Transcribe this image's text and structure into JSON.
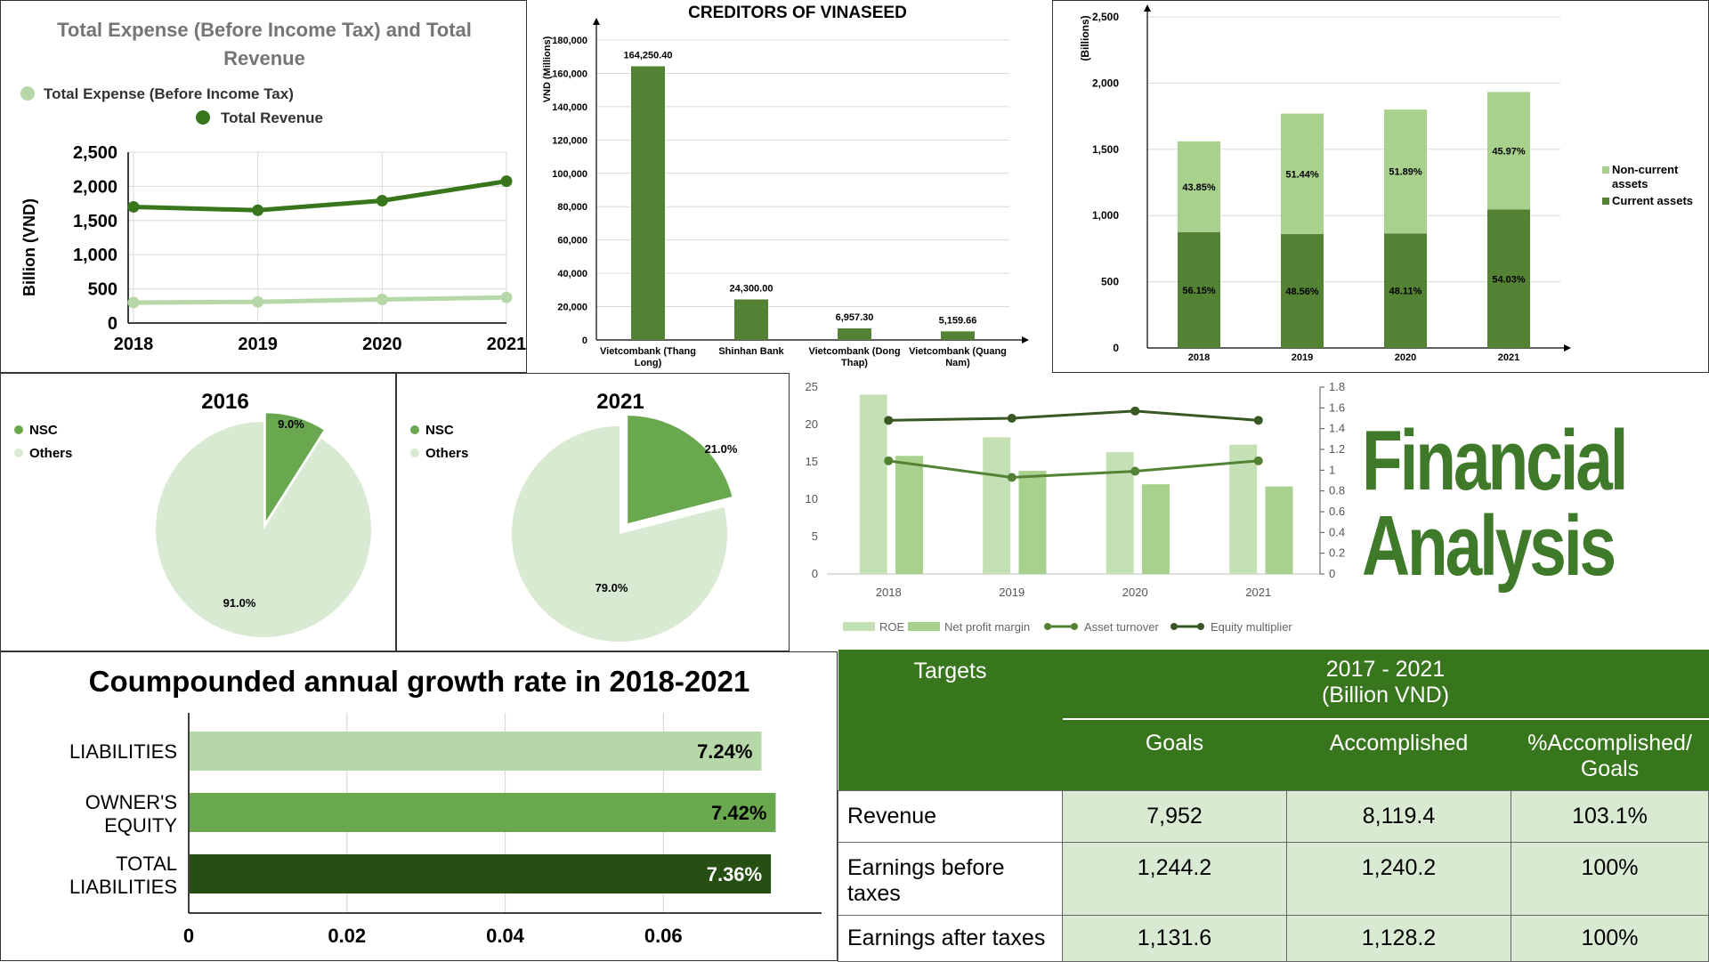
{
  "line_chart": {
    "title_line1": "Total Expense (Before Income Tax)  and Total",
    "title_line2": "Revenue",
    "legend_expense": "Total Expense (Before Income Tax)",
    "legend_revenue": "Total Revenue",
    "ylabel": "Billion (VND)"
  },
  "creditors_chart": {
    "title": "CREDITORS OF VINASEED",
    "ylabel": "VND (Millions)"
  },
  "assets_chart": {
    "ylabel": "(Billions)",
    "legend_noncurrent_1": "Non-current",
    "legend_noncurrent_2": "assets",
    "legend_current": "Current assets"
  },
  "pie_2016": {
    "title": "2016",
    "legend_nsc": "NSC",
    "legend_others": "Others"
  },
  "pie_2021": {
    "title": "2021",
    "legend_nsc": "NSC",
    "legend_others": "Others"
  },
  "ratios_chart": {
    "legend_roe": "ROE",
    "legend_npm": "Net profit margin",
    "legend_at": "Asset turnover",
    "legend_em": "Equity multiplier"
  },
  "cagr_chart": {
    "title": "Coumpounded annual growth rate in 2018-2021"
  },
  "hero": {
    "line1": "Financial",
    "line2": "Analysis"
  },
  "targets_table": {
    "header_targets": "Targets",
    "header_period_1": "2017 - 2021",
    "header_period_2": "(Billion VND)",
    "header_goals": "Goals",
    "header_accomplished": "Accomplished",
    "header_pct_1": "%Accomplished/",
    "header_pct_2": "Goals",
    "rows": [
      {
        "label_1": "Revenue",
        "label_2": "",
        "goals": "7,952",
        "accomplished": "8,119.4",
        "pct": "103.1%"
      },
      {
        "label_1": "Earnings before",
        "label_2": "taxes",
        "goals": "1,244.2",
        "accomplished": "1,240.2",
        "pct": "100%"
      },
      {
        "label_1": "Earnings after taxes",
        "label_2": "",
        "goals": "1,131.6",
        "accomplished": "1,128.2",
        "pct": "100%"
      }
    ]
  },
  "colors": {
    "dark_green": "#38761d",
    "mid_green": "#6aa84f",
    "light_green": "#b6d7a8",
    "pale_green": "#d9ead3",
    "bar_green": "#548235"
  },
  "chart_data": [
    {
      "id": "line",
      "type": "line",
      "x": [
        "2018",
        "2019",
        "2020",
        "2021"
      ],
      "series": [
        {
          "name": "Total Expense (Before Income Tax)",
          "values": [
            300,
            310,
            345,
            375
          ]
        },
        {
          "name": "Total Revenue",
          "values": [
            1700,
            1650,
            1790,
            2075
          ]
        }
      ],
      "yticks": [
        "0",
        "500",
        "1,000",
        "1,500",
        "2,000",
        "2,500"
      ],
      "ylim": [
        0,
        2500
      ],
      "grid": true,
      "legend": "top-left"
    },
    {
      "id": "creditors",
      "type": "bar",
      "categories": [
        "Vietcombank (Thang Long)",
        "Shinhan Bank",
        "Vietcombank (Dong Thap)",
        "Vietcombank (Quang Nam)"
      ],
      "values": [
        164250.4,
        24300.0,
        6957.3,
        5159.66
      ],
      "data_labels": [
        "164,250.40",
        "24,300.00",
        "6,957.30",
        "5,159.66"
      ],
      "yticks": [
        "0",
        "20,000",
        "40,000",
        "60,000",
        "80,000",
        "100,000",
        "120,000",
        "140,000",
        "160,000",
        "180,000"
      ],
      "ylim": [
        0,
        180000
      ],
      "grid": true
    },
    {
      "id": "assets",
      "type": "bar",
      "stacked": true,
      "categories": [
        "2018",
        "2019",
        "2020",
        "2021"
      ],
      "series": [
        {
          "name": "Current assets",
          "values": [
            875,
            860,
            865,
            1045
          ],
          "labels": [
            "56.15%",
            "48.56%",
            "48.11%",
            "54.03%"
          ]
        },
        {
          "name": "Non-current assets",
          "values": [
            685,
            910,
            935,
            888
          ],
          "labels": [
            "43.85%",
            "51.44%",
            "51.89%",
            "45.97%"
          ]
        }
      ],
      "yticks": [
        "0",
        "500",
        "1,000",
        "1,500",
        "2,000",
        "2,500"
      ],
      "ylim": [
        0,
        2500
      ],
      "grid": true,
      "legend": "right"
    },
    {
      "id": "pie2016",
      "type": "pie",
      "title": "2016",
      "labels": [
        "NSC",
        "Others"
      ],
      "values": [
        9.0,
        91.0
      ],
      "data_labels": [
        "9.0%",
        "91.0%"
      ],
      "legend": "top-left"
    },
    {
      "id": "pie2021",
      "type": "pie",
      "title": "2021",
      "labels": [
        "NSC",
        "Others"
      ],
      "values": [
        21.0,
        79.0
      ],
      "data_labels": [
        "21.0%",
        "79.0%"
      ],
      "legend": "top-left"
    },
    {
      "id": "ratios",
      "type": "bar",
      "combo": "bar+line",
      "categories": [
        "2018",
        "2019",
        "2020",
        "2021"
      ],
      "series": [
        {
          "name": "ROE",
          "kind": "bar",
          "axis": "left",
          "values": [
            24.0,
            18.3,
            16.3,
            17.3
          ]
        },
        {
          "name": "Net profit margin",
          "kind": "bar",
          "axis": "left",
          "values": [
            15.8,
            13.8,
            12.0,
            11.7
          ]
        },
        {
          "name": "Asset turnover",
          "kind": "line",
          "axis": "right",
          "values": [
            1.09,
            0.93,
            0.99,
            1.09
          ]
        },
        {
          "name": "Equity multiplier",
          "kind": "line",
          "axis": "right",
          "values": [
            1.48,
            1.5,
            1.57,
            1.48
          ]
        }
      ],
      "yticks_left": [
        "0",
        "5",
        "10",
        "15",
        "20",
        "25"
      ],
      "ylim_left": [
        0,
        25
      ],
      "yticks_right": [
        "0",
        "0.2",
        "0.4",
        "0.6",
        "0.8",
        "1",
        "1.2",
        "1.4",
        "1.6",
        "1.8"
      ],
      "ylim_right": [
        0,
        1.8
      ],
      "grid": false,
      "legend": "bottom"
    },
    {
      "id": "cagr",
      "type": "bar",
      "orientation": "horizontal",
      "title": "Coumpounded annual growth rate in 2018-2021",
      "categories": [
        "LIABILITIES",
        "OWNER'S EQUITY",
        "TOTAL LIABILITIES"
      ],
      "values": [
        0.0724,
        0.0742,
        0.0736
      ],
      "data_labels": [
        "7.24%",
        "7.42%",
        "7.36%"
      ],
      "xticks": [
        "0",
        "0.02",
        "0.04",
        "0.06"
      ],
      "xlim": [
        0,
        0.08
      ],
      "grid": true
    }
  ]
}
